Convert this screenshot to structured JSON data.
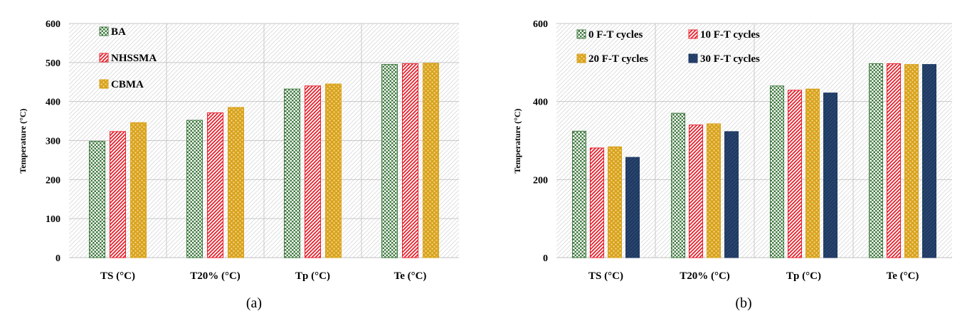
{
  "colors": {
    "green": "#3f7a3f",
    "red": "#e8202c",
    "gold": "#d9a21b",
    "navy": "#1f3a63",
    "grid": "#c8c8c8",
    "shade": "#d9d9d9"
  },
  "chart_data": [
    {
      "id": "a",
      "caption": "(a)",
      "type": "bar",
      "ylabel": "Temperature (°C)",
      "ylim": [
        0,
        600
      ],
      "yticks": [
        0,
        100,
        200,
        300,
        400,
        500,
        600
      ],
      "categories": [
        "TS (°C)",
        "T20% (°C)",
        "Tp (°C)",
        "Te (°C)"
      ],
      "legend_position": "top-left",
      "legend_layout": "column",
      "series": [
        {
          "name": "BA",
          "color": "green",
          "pattern": "check",
          "values": [
            298,
            352,
            432,
            495
          ]
        },
        {
          "name": "NHSSMA",
          "color": "red",
          "pattern": "diag",
          "values": [
            323,
            371,
            440,
            497
          ]
        },
        {
          "name": "CBMA",
          "color": "gold",
          "pattern": "dots",
          "values": [
            346,
            385,
            445,
            498
          ]
        }
      ]
    },
    {
      "id": "b",
      "caption": "(b)",
      "type": "bar",
      "ylabel": "Temperature (°C)",
      "ylim": [
        0,
        600
      ],
      "yticks": [
        0,
        200,
        400,
        600
      ],
      "categories": [
        "TS (°C)",
        "T20% (°C)",
        "Tp (°C)",
        "Te (°C)"
      ],
      "legend_position": "top-left",
      "legend_layout": "grid-2x2",
      "series": [
        {
          "name": "0 F-T cycles",
          "color": "green",
          "pattern": "check",
          "values": [
            324,
            370,
            440,
            497
          ]
        },
        {
          "name": "10 F-T cycles",
          "color": "red",
          "pattern": "diag",
          "values": [
            281,
            340,
            429,
            497
          ]
        },
        {
          "name": "20 F-T cycles",
          "color": "gold",
          "pattern": "dots",
          "values": [
            284,
            343,
            432,
            495
          ]
        },
        {
          "name": "30 F-T cycles",
          "color": "navy",
          "pattern": "solid",
          "values": [
            257,
            323,
            422,
            495
          ]
        }
      ]
    }
  ]
}
